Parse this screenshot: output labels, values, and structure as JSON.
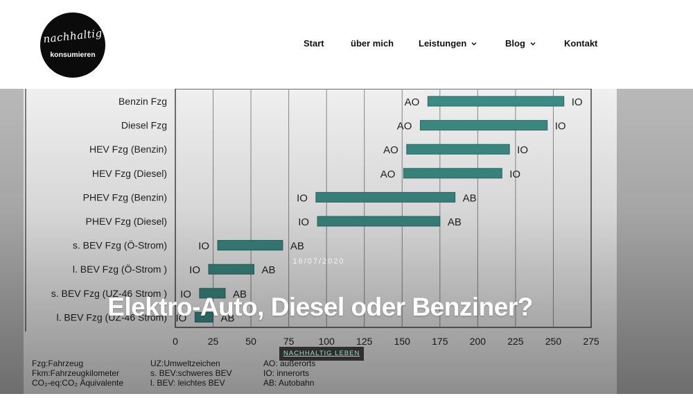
{
  "logo": {
    "script_text": "nachhaltig",
    "sub_text": "konsumieren"
  },
  "nav": {
    "items": [
      {
        "label": "Start",
        "has_dropdown": false
      },
      {
        "label": "über mich",
        "has_dropdown": false
      },
      {
        "label": "Leistungen",
        "has_dropdown": true
      },
      {
        "label": "Blog",
        "has_dropdown": true
      },
      {
        "label": "Kontakt",
        "has_dropdown": false
      }
    ]
  },
  "post": {
    "date": "16/07/2020",
    "title": "Elektro-Auto, Diesel oder Benziner?",
    "category": "NACHHALTIG LEBEN"
  },
  "colors": {
    "bar": "#3b8f87",
    "bar_stroke": "#2b6e68",
    "category_text": "#8fe3c9"
  },
  "chart_data": {
    "type": "bar",
    "orientation": "horizontal-range",
    "categories": [
      "Benzin Fzg",
      "Diesel Fzg",
      "HEV Fzg (Benzin)",
      "HEV Fzg (Diesel)",
      "PHEV Fzg (Benzin)",
      "PHEV Fzg (Diesel)",
      "s. BEV Fzg (Ö-Strom)",
      "l. BEV Fzg (Ö-Strom )",
      "s. BEV Fzg (UZ-46 Strom )",
      "l. BEV Fzg (UZ-46 Strom)"
    ],
    "ranges": [
      {
        "start": 167,
        "end": 257,
        "start_label": "AO",
        "end_label": "IO"
      },
      {
        "start": 162,
        "end": 246,
        "start_label": "AO",
        "end_label": "IO"
      },
      {
        "start": 153,
        "end": 221,
        "start_label": "AO",
        "end_label": "IO"
      },
      {
        "start": 151,
        "end": 216,
        "start_label": "AO",
        "end_label": "IO"
      },
      {
        "start": 93,
        "end": 185,
        "start_label": "IO",
        "end_label": "AB"
      },
      {
        "start": 94,
        "end": 175,
        "start_label": "IO",
        "end_label": "AB"
      },
      {
        "start": 28,
        "end": 71,
        "start_label": "IO",
        "end_label": "AB"
      },
      {
        "start": 22,
        "end": 52,
        "start_label": "IO",
        "end_label": "AB"
      },
      {
        "start": 16,
        "end": 33,
        "start_label": "IO",
        "end_label": "AB"
      },
      {
        "start": 13,
        "end": 25,
        "start_label": "IO",
        "end_label": "AB"
      }
    ],
    "xlim": [
      0,
      275
    ],
    "xticks": [
      0,
      25,
      50,
      75,
      100,
      125,
      150,
      175,
      200,
      225,
      250,
      275
    ],
    "grid": "vertical",
    "legend_lines": [
      [
        "Fzg:Fahrzeug",
        "UZ:Umweltzeichen",
        "AO: außerorts"
      ],
      [
        "Fkm:Fahrzeugkilometer",
        "s. BEV:schweres BEV",
        "IO: innerorts"
      ],
      [
        "CO₂-eq:CO₂ Äquivalente",
        "l. BEV: leichtes BEV",
        "AB: Autobahn"
      ]
    ]
  }
}
